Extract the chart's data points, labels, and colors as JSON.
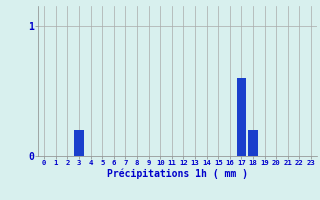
{
  "hours": [
    0,
    1,
    2,
    3,
    4,
    5,
    6,
    7,
    8,
    9,
    10,
    11,
    12,
    13,
    14,
    15,
    16,
    17,
    18,
    19,
    20,
    21,
    22,
    23
  ],
  "values": [
    0,
    0,
    0,
    0.2,
    0,
    0,
    0,
    0,
    0,
    0,
    0,
    0,
    0,
    0,
    0,
    0,
    0,
    0.6,
    0.2,
    0,
    0,
    0,
    0,
    0
  ],
  "bar_color": "#1a3fcc",
  "background_color": "#d8f0ee",
  "grid_color": "#aaaaaa",
  "xlabel": "Précipitations 1h ( mm )",
  "xlabel_color": "#0000cc",
  "tick_color": "#0000cc",
  "ytick_labels": [
    "0",
    "1"
  ],
  "ytick_values": [
    0,
    1
  ],
  "ylim": [
    0,
    1.15
  ],
  "xlim": [
    -0.5,
    23.5
  ]
}
